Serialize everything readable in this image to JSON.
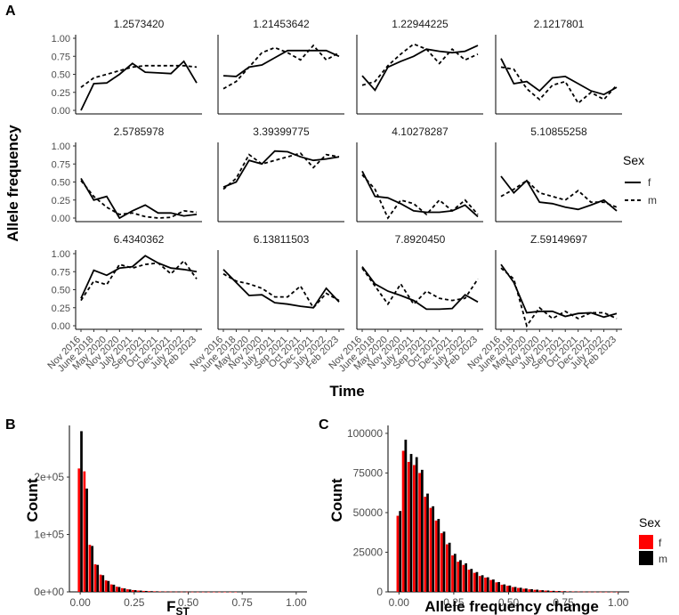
{
  "panel_labels": {
    "a": "A",
    "b": "B",
    "c": "C"
  },
  "chart_data": [
    {
      "type": "line",
      "panel": "A",
      "xlabel": "Time",
      "ylabel": "Allele frequency",
      "x": [
        "Nov 2016",
        "June 2018",
        "May 2020",
        "Nov 2020",
        "July 2021",
        "Sep 2021",
        "Oct 2021",
        "Dec 2021",
        "July 2022",
        "Feb 2023"
      ],
      "ylim": [
        0,
        1
      ],
      "yticks": [
        "0.00",
        "0.25",
        "0.50",
        "0.75",
        "1.00"
      ],
      "legend": {
        "title": "Sex",
        "entries": [
          "f",
          "m"
        ],
        "position": "right"
      },
      "facets": [
        {
          "title": "1.2573420",
          "f": [
            0.0,
            0.37,
            0.38,
            0.5,
            0.65,
            0.53,
            0.52,
            0.51,
            0.68,
            0.38
          ],
          "m": [
            0.32,
            0.45,
            0.5,
            0.55,
            0.6,
            0.62,
            0.62,
            0.62,
            0.62,
            0.6
          ]
        },
        {
          "title": "1.21453642",
          "f": [
            0.48,
            0.47,
            0.6,
            0.63,
            0.73,
            0.83,
            0.83,
            0.83,
            0.83,
            0.75
          ],
          "m": [
            0.3,
            0.4,
            0.6,
            0.8,
            0.87,
            0.8,
            0.7,
            0.9,
            0.7,
            0.8
          ]
        },
        {
          "title": "1.22944225",
          "f": [
            0.48,
            0.28,
            0.6,
            0.68,
            0.75,
            0.85,
            0.82,
            0.8,
            0.82,
            0.9
          ],
          "m": [
            0.35,
            0.4,
            0.62,
            0.78,
            0.92,
            0.85,
            0.65,
            0.85,
            0.7,
            0.78
          ]
        },
        {
          "title": "2.1217801",
          "f": [
            0.72,
            0.37,
            0.4,
            0.27,
            0.45,
            0.47,
            0.37,
            0.27,
            0.22,
            0.32
          ],
          "m": [
            0.6,
            0.57,
            0.3,
            0.15,
            0.35,
            0.4,
            0.1,
            0.25,
            0.15,
            0.35
          ]
        },
        {
          "title": "2.5785978",
          "f": [
            0.55,
            0.25,
            0.3,
            0.0,
            0.1,
            0.18,
            0.07,
            0.07,
            0.03,
            0.05
          ],
          "m": [
            0.52,
            0.3,
            0.15,
            0.05,
            0.07,
            0.02,
            0.0,
            0.01,
            0.1,
            0.08
          ]
        },
        {
          "title": "3.39399775",
          "f": [
            0.43,
            0.5,
            0.8,
            0.75,
            0.93,
            0.92,
            0.85,
            0.8,
            0.82,
            0.85
          ],
          "m": [
            0.4,
            0.55,
            0.88,
            0.75,
            0.8,
            0.85,
            0.9,
            0.7,
            0.88,
            0.85
          ]
        },
        {
          "title": "4.10278287",
          "f": [
            0.65,
            0.3,
            0.28,
            0.2,
            0.1,
            0.08,
            0.08,
            0.1,
            0.18,
            0.02
          ],
          "m": [
            0.6,
            0.4,
            0.0,
            0.25,
            0.2,
            0.05,
            0.25,
            0.1,
            0.25,
            0.05
          ]
        },
        {
          "title": "5.10855258",
          "f": [
            0.58,
            0.35,
            0.52,
            0.22,
            0.2,
            0.15,
            0.12,
            0.18,
            0.25,
            0.1
          ],
          "m": [
            0.3,
            0.4,
            0.52,
            0.35,
            0.3,
            0.25,
            0.38,
            0.22,
            0.22,
            0.15
          ]
        },
        {
          "title": "6.4340362",
          "f": [
            0.38,
            0.77,
            0.7,
            0.8,
            0.82,
            0.97,
            0.87,
            0.8,
            0.78,
            0.75
          ],
          "m": [
            0.35,
            0.62,
            0.57,
            0.85,
            0.8,
            0.85,
            0.87,
            0.72,
            0.9,
            0.65
          ]
        },
        {
          "title": "6.13811503",
          "f": [
            0.78,
            0.6,
            0.42,
            0.43,
            0.32,
            0.3,
            0.27,
            0.25,
            0.52,
            0.33
          ],
          "m": [
            0.72,
            0.62,
            0.58,
            0.52,
            0.4,
            0.4,
            0.55,
            0.25,
            0.45,
            0.35
          ]
        },
        {
          "title": "7.8920450",
          "f": [
            0.82,
            0.58,
            0.48,
            0.42,
            0.35,
            0.23,
            0.23,
            0.24,
            0.43,
            0.33
          ],
          "m": [
            0.8,
            0.55,
            0.3,
            0.58,
            0.3,
            0.48,
            0.38,
            0.35,
            0.38,
            0.65
          ]
        },
        {
          "title": "Z.59149697",
          "f": [
            0.85,
            0.6,
            0.18,
            0.2,
            0.2,
            0.13,
            0.17,
            0.18,
            0.12,
            0.17
          ],
          "m": [
            0.8,
            0.65,
            0.0,
            0.25,
            0.1,
            0.2,
            0.1,
            0.18,
            0.18,
            0.1
          ]
        }
      ]
    },
    {
      "type": "bar",
      "panel": "B",
      "xlabel_main": "F",
      "xlabel_sub": "ST",
      "ylabel": "Count",
      "xlim": [
        -0.05,
        1.05
      ],
      "ylim": [
        0,
        290000
      ],
      "xticks": [
        "0.00",
        "0.25",
        "0.50",
        "0.75",
        "1.00"
      ],
      "yticks": [
        "0e+00",
        "1e+05",
        "2e+05"
      ],
      "bin_width": 0.025,
      "bins": [
        0.0,
        0.025,
        0.05,
        0.075,
        0.1,
        0.125,
        0.15,
        0.175,
        0.2,
        0.225,
        0.25,
        0.275,
        0.3,
        0.325,
        0.35,
        0.375,
        0.4,
        0.425,
        0.45,
        0.475,
        0.5,
        0.525,
        0.55,
        0.575,
        0.6,
        0.625,
        0.65,
        0.675,
        0.7,
        0.725
      ],
      "series": [
        {
          "name": "f",
          "color": "#ff0000",
          "values": [
            215000,
            210000,
            82000,
            48000,
            30000,
            20000,
            13000,
            9000,
            6500,
            4500,
            3200,
            2300,
            1700,
            1300,
            1000,
            800,
            650,
            500,
            400,
            320,
            260,
            210,
            170,
            140,
            110,
            90,
            70,
            55,
            40,
            30
          ]
        },
        {
          "name": "m",
          "color": "#000000",
          "values": [
            280000,
            180000,
            80000,
            47000,
            29000,
            19000,
            12500,
            8500,
            6000,
            4200,
            3000,
            2200,
            1600,
            1200,
            950,
            750,
            600,
            480,
            380,
            300,
            240,
            200,
            160,
            130,
            100,
            80,
            65,
            50,
            38,
            28
          ]
        }
      ]
    },
    {
      "type": "bar",
      "panel": "C",
      "xlabel": "Allele frequency change",
      "ylabel": "Count",
      "xlim": [
        -0.05,
        1.05
      ],
      "ylim": [
        0,
        105000
      ],
      "xticks": [
        "0.00",
        "0.25",
        "0.50",
        "0.75",
        "1.00"
      ],
      "yticks": [
        "0",
        "25000",
        "50000",
        "75000",
        "100000"
      ],
      "bin_width": 0.025,
      "legend": {
        "title": "Sex",
        "entries": [
          "f",
          "m"
        ],
        "position": "right"
      },
      "bins": [
        0.0,
        0.025,
        0.05,
        0.075,
        0.1,
        0.125,
        0.15,
        0.175,
        0.2,
        0.225,
        0.25,
        0.275,
        0.3,
        0.325,
        0.35,
        0.375,
        0.4,
        0.425,
        0.45,
        0.475,
        0.5,
        0.525,
        0.55,
        0.575,
        0.6,
        0.625,
        0.65,
        0.675,
        0.7,
        0.725,
        0.75,
        0.775,
        0.8,
        0.825,
        0.85,
        0.875,
        0.9,
        0.925,
        0.95,
        0.975,
        1.0
      ],
      "series": [
        {
          "name": "f",
          "color": "#ff0000",
          "values": [
            48000,
            89000,
            82000,
            80000,
            75000,
            60000,
            53000,
            45000,
            37000,
            30000,
            23000,
            19000,
            17000,
            14000,
            12000,
            10000,
            9000,
            7500,
            6000,
            4500,
            3800,
            3000,
            2500,
            2000,
            1600,
            1300,
            1000,
            800,
            600,
            500,
            400,
            300,
            250,
            200,
            150,
            100,
            80,
            60,
            40,
            30,
            20
          ]
        },
        {
          "name": "m",
          "color": "#000000",
          "values": [
            51000,
            96000,
            87000,
            85000,
            77000,
            62000,
            54000,
            46000,
            38000,
            31000,
            24000,
            20000,
            18000,
            14500,
            12500,
            10500,
            9200,
            7800,
            6200,
            4700,
            4000,
            3100,
            2600,
            2100,
            1700,
            1400,
            1050,
            850,
            650,
            520,
            420,
            320,
            260,
            210,
            160,
            110,
            85,
            65,
            45,
            32,
            22
          ]
        }
      ]
    }
  ]
}
